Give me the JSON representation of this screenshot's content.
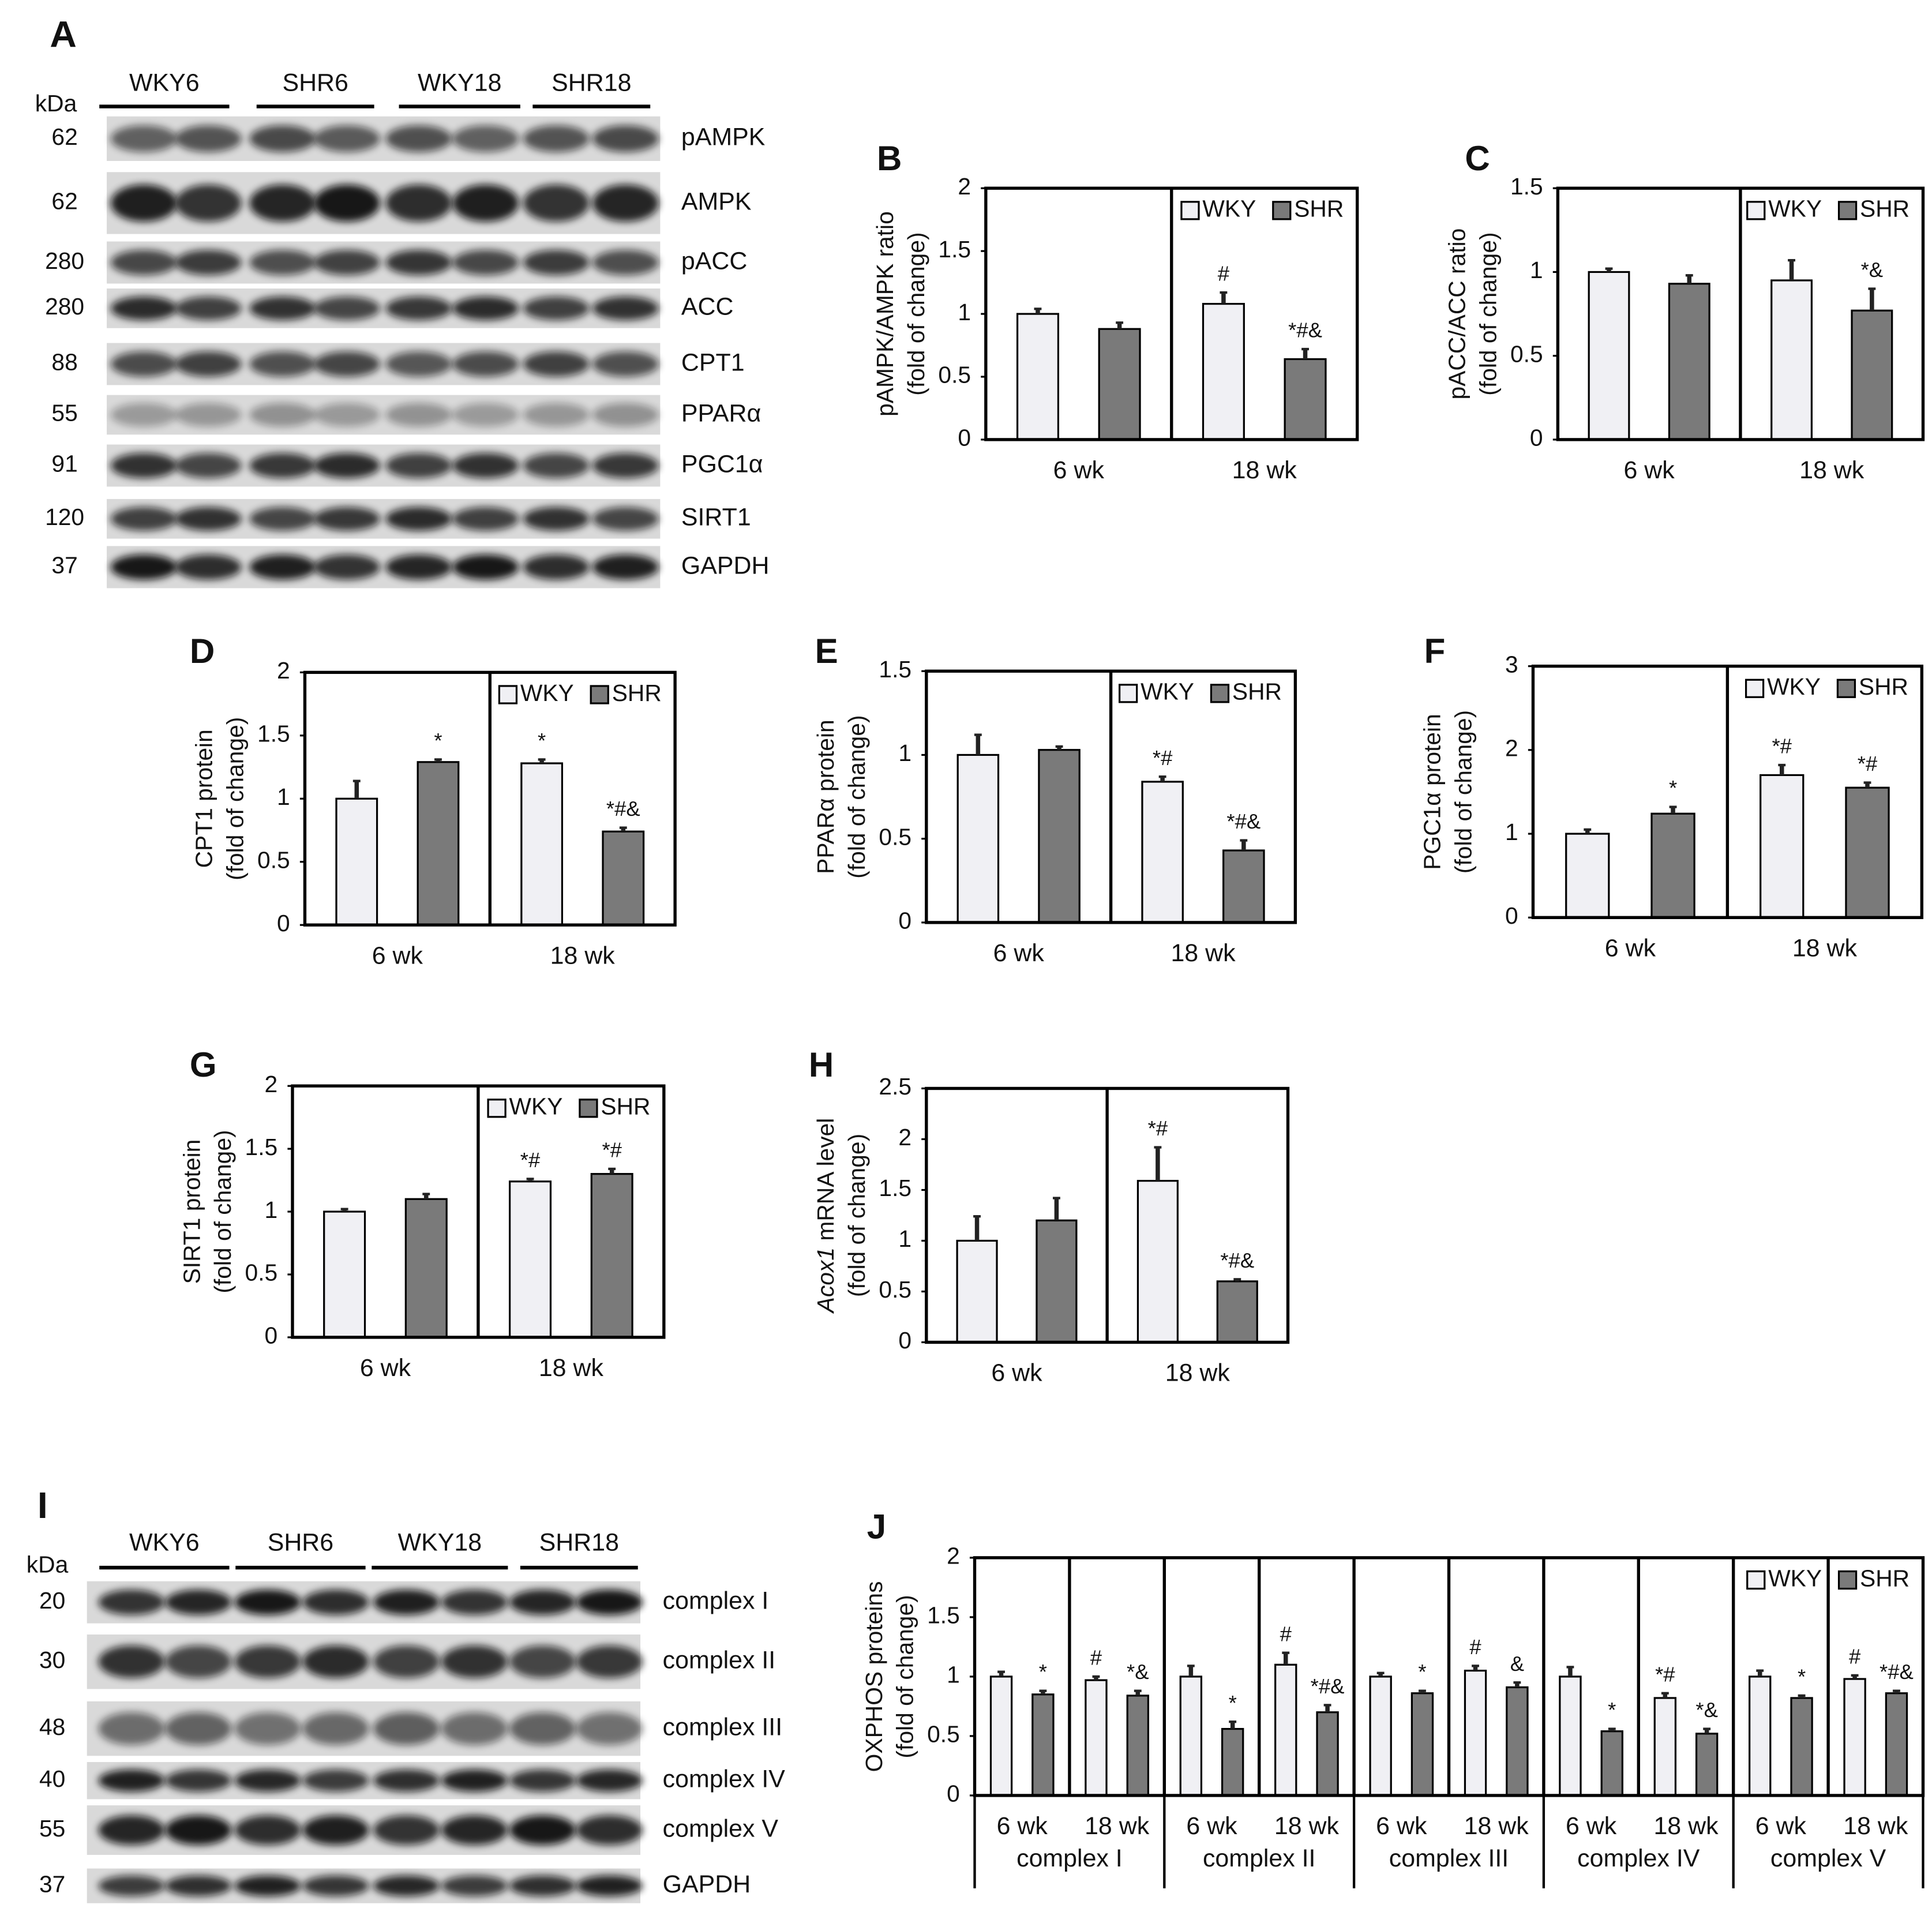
{
  "blots": [
    {
      "panel": "A",
      "unit": "kDa",
      "groups": [
        "WKY6",
        "SHR6",
        "WKY18",
        "SHR18"
      ],
      "rows": [
        {
          "kda": "62",
          "protein": "pAMPK"
        },
        {
          "kda": "62",
          "protein": "AMPK"
        },
        {
          "kda": "280",
          "protein": "pACC"
        },
        {
          "kda": "280",
          "protein": "ACC"
        },
        {
          "kda": "88",
          "protein": "CPT1"
        },
        {
          "kda": "55",
          "protein": "PPARα"
        },
        {
          "kda": "91",
          "protein": "PGC1α"
        },
        {
          "kda": "120",
          "protein": "SIRT1"
        },
        {
          "kda": "37",
          "protein": "GAPDH"
        }
      ]
    },
    {
      "panel": "I",
      "unit": "kDa",
      "groups": [
        "WKY6",
        "SHR6",
        "WKY18",
        "SHR18"
      ],
      "rows": [
        {
          "kda": "20",
          "protein": "complex I"
        },
        {
          "kda": "30",
          "protein": "complex II"
        },
        {
          "kda": "48",
          "protein": "complex III"
        },
        {
          "kda": "40",
          "protein": "complex IV"
        },
        {
          "kda": "55",
          "protein": "complex V"
        },
        {
          "kda": "37",
          "protein": "GAPDH"
        }
      ]
    }
  ],
  "chart_data": [
    {
      "type": "bar",
      "panel": "B",
      "ylabel": [
        "pAMPK/AMPK ratio",
        "(fold of change)"
      ],
      "categories": [
        "6 wk",
        "18 wk"
      ],
      "ylim": [
        0,
        2
      ],
      "yticks": [
        0,
        0.5,
        1,
        1.5,
        2
      ],
      "legend": "top-right",
      "series": [
        {
          "name": "WKY",
          "color": "#f0f0f4",
          "values": [
            1.0,
            1.08
          ],
          "errors": [
            0.04,
            0.09
          ],
          "annotations": [
            null,
            "#"
          ]
        },
        {
          "name": "SHR",
          "color": "#7a7a7a",
          "values": [
            0.88,
            0.64
          ],
          "errors": [
            0.05,
            0.08
          ],
          "annotations": [
            null,
            "*#&"
          ]
        }
      ]
    },
    {
      "type": "bar",
      "panel": "C",
      "ylabel": [
        "pACC/ACC ratio",
        "(fold of change)"
      ],
      "categories": [
        "6 wk",
        "18 wk"
      ],
      "ylim": [
        0,
        1.5
      ],
      "yticks": [
        0,
        0.5,
        1,
        1.5
      ],
      "legend": "top-right",
      "series": [
        {
          "name": "WKY",
          "color": "#f0f0f4",
          "values": [
            1.0,
            0.95
          ],
          "errors": [
            0.02,
            0.12
          ],
          "annotations": [
            null,
            null
          ]
        },
        {
          "name": "SHR",
          "color": "#7a7a7a",
          "values": [
            0.93,
            0.77
          ],
          "errors": [
            0.05,
            0.13
          ],
          "annotations": [
            null,
            "*&"
          ]
        }
      ]
    },
    {
      "type": "bar",
      "panel": "D",
      "ylabel": [
        "CPT1 protein",
        "(fold of change)"
      ],
      "categories": [
        "6 wk",
        "18 wk"
      ],
      "ylim": [
        0,
        2
      ],
      "yticks": [
        0,
        0.5,
        1,
        1.5,
        2
      ],
      "legend": "top-right",
      "series": [
        {
          "name": "WKY",
          "color": "#f0f0f4",
          "values": [
            1.0,
            1.28
          ],
          "errors": [
            0.14,
            0.03
          ],
          "annotations": [
            null,
            "*"
          ]
        },
        {
          "name": "SHR",
          "color": "#7a7a7a",
          "values": [
            1.29,
            0.74
          ],
          "errors": [
            0.02,
            0.03
          ],
          "annotations": [
            "*",
            "*#&"
          ]
        }
      ]
    },
    {
      "type": "bar",
      "panel": "E",
      "ylabel": [
        "PPARα protein",
        "(fold of change)"
      ],
      "categories": [
        "6 wk",
        "18 wk"
      ],
      "ylim": [
        0,
        1.5
      ],
      "yticks": [
        0,
        0.5,
        1,
        1.5
      ],
      "legend": "top-right",
      "series": [
        {
          "name": "WKY",
          "color": "#f0f0f4",
          "values": [
            1.0,
            0.84
          ],
          "errors": [
            0.12,
            0.03
          ],
          "annotations": [
            null,
            "*#"
          ]
        },
        {
          "name": "SHR",
          "color": "#7a7a7a",
          "values": [
            1.03,
            0.43
          ],
          "errors": [
            0.02,
            0.06
          ],
          "annotations": [
            null,
            "*#&"
          ]
        }
      ]
    },
    {
      "type": "bar",
      "panel": "F",
      "ylabel": [
        "PGC1α protein",
        "(fold of change)"
      ],
      "categories": [
        "6 wk",
        "18 wk"
      ],
      "ylim": [
        0,
        3
      ],
      "yticks": [
        0,
        1,
        2,
        3
      ],
      "legend": "top-right",
      "series": [
        {
          "name": "WKY",
          "color": "#f0f0f4",
          "values": [
            1.0,
            1.7
          ],
          "errors": [
            0.05,
            0.12
          ],
          "annotations": [
            null,
            "*#"
          ]
        },
        {
          "name": "SHR",
          "color": "#7a7a7a",
          "values": [
            1.24,
            1.55
          ],
          "errors": [
            0.08,
            0.06
          ],
          "annotations": [
            "*",
            "*#"
          ]
        }
      ]
    },
    {
      "type": "bar",
      "panel": "G",
      "ylabel": [
        "SIRT1 protein",
        "(fold of change)"
      ],
      "categories": [
        "6 wk",
        "18 wk"
      ],
      "ylim": [
        0,
        2
      ],
      "yticks": [
        0,
        0.5,
        1,
        1.5,
        2
      ],
      "legend": "top-right",
      "series": [
        {
          "name": "WKY",
          "color": "#f0f0f4",
          "values": [
            1.0,
            1.24
          ],
          "errors": [
            0.02,
            0.02
          ],
          "annotations": [
            null,
            "*#"
          ]
        },
        {
          "name": "SHR",
          "color": "#7a7a7a",
          "values": [
            1.1,
            1.3
          ],
          "errors": [
            0.04,
            0.04
          ],
          "annotations": [
            null,
            "*#"
          ]
        }
      ]
    },
    {
      "type": "bar",
      "panel": "H",
      "ylabel_italic": "Acox1",
      "ylabel": [
        "mRNA level",
        "(fold of change)"
      ],
      "categories": [
        "6 wk",
        "18 wk"
      ],
      "ylim": [
        0,
        2.5
      ],
      "yticks": [
        0,
        0.5,
        1,
        1.5,
        2,
        2.5
      ],
      "series": [
        {
          "name": "WKY",
          "color": "#f0f0f4",
          "values": [
            1.0,
            1.59
          ],
          "errors": [
            0.24,
            0.33
          ],
          "annotations": [
            null,
            "*#"
          ]
        },
        {
          "name": "SHR",
          "color": "#7a7a7a",
          "values": [
            1.2,
            0.6
          ],
          "errors": [
            0.22,
            0.02
          ],
          "annotations": [
            null,
            "*#&"
          ]
        }
      ]
    },
    {
      "type": "bar",
      "panel": "J",
      "ylabel": [
        "OXPHOS proteins",
        "(fold of change)"
      ],
      "categories": [
        "6 wk",
        "18 wk",
        "6 wk",
        "18 wk",
        "6 wk",
        "18 wk",
        "6 wk",
        "18 wk",
        "6 wk",
        "18 wk"
      ],
      "groups": [
        "complex I",
        "complex II",
        "complex III",
        "complex IV",
        "complex V"
      ],
      "ylim": [
        0,
        2
      ],
      "yticks": [
        0,
        0.5,
        1,
        1.5,
        2
      ],
      "legend": "top-right",
      "series": [
        {
          "name": "WKY",
          "color": "#f0f0f4",
          "values": [
            1.0,
            0.97,
            1.0,
            1.1,
            1.0,
            1.05,
            1.0,
            0.82,
            1.0,
            0.98
          ],
          "errors": [
            0.04,
            0.03,
            0.09,
            0.1,
            0.03,
            0.04,
            0.08,
            0.04,
            0.05,
            0.03
          ],
          "annotations": [
            null,
            "#",
            null,
            "#",
            null,
            "#",
            null,
            "*#",
            null,
            "#"
          ]
        },
        {
          "name": "SHR",
          "color": "#7a7a7a",
          "values": [
            0.85,
            0.84,
            0.56,
            0.7,
            0.86,
            0.91,
            0.54,
            0.52,
            0.82,
            0.86
          ],
          "errors": [
            0.03,
            0.04,
            0.06,
            0.06,
            0.02,
            0.04,
            0.02,
            0.04,
            0.02,
            0.02
          ],
          "annotations": [
            "*",
            "*&",
            "*",
            "*#&",
            "*",
            "&",
            "*",
            "*&",
            "*",
            "*#&"
          ]
        }
      ]
    }
  ]
}
